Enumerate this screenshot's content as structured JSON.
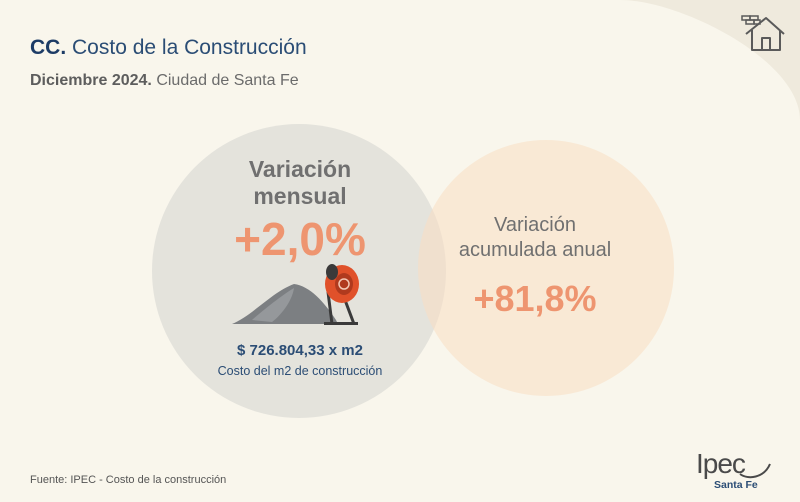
{
  "header": {
    "code": "CC.",
    "title": "Costo de la Construcción",
    "period": "Diciembre 2024.",
    "place": "Ciudad de Santa Fe"
  },
  "monthly": {
    "label_line1": "Variación",
    "label_line2": "mensual",
    "value": "+2,0%",
    "price": "$ 726.804,33 x m2",
    "price_note": "Costo del m2 de construcción"
  },
  "annual": {
    "label_line1": "Variación",
    "label_line2": "acumulada anual",
    "value": "+81,8%"
  },
  "footer": {
    "source": "Fuente: IPEC - Costo de la construcción",
    "logo_main": "Ipec",
    "logo_sub": "Santa Fe"
  },
  "icons": {
    "top_right": "house-with-bricks-icon",
    "illustration": "cement-mixer-icon"
  },
  "colors": {
    "background": "#f9f6ec",
    "title_blue": "#2b4d75",
    "accent_orange": "#ee9570",
    "circle_gray": "#d6d6d2",
    "circle_peach": "#fadec2"
  }
}
